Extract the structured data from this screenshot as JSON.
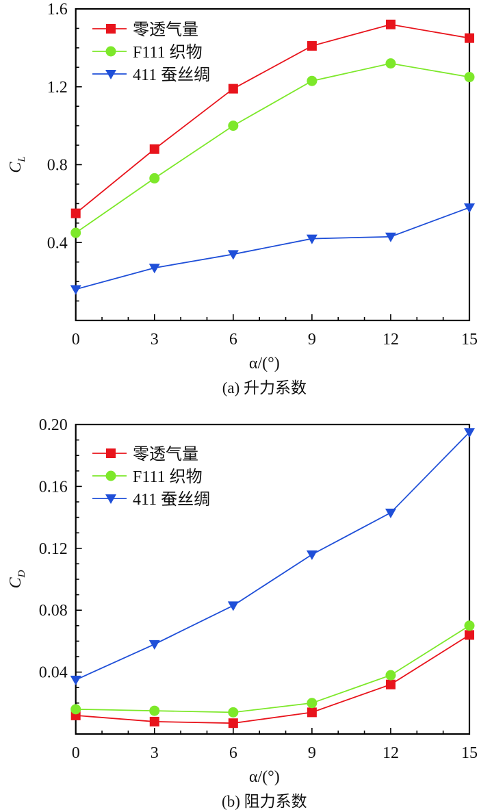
{
  "chart_data": [
    {
      "type": "line",
      "caption": "(a) 升力系数",
      "xlabel": "α/(°)",
      "ylabel_main": "C",
      "ylabel_sub": "L",
      "x": [
        0,
        3,
        6,
        9,
        12,
        15
      ],
      "xlim": [
        0,
        15
      ],
      "ylim": [
        0,
        1.6
      ],
      "xticks": [
        "0",
        "3",
        "6",
        "9",
        "12",
        "15"
      ],
      "yticks": [
        "0.4",
        "0.8",
        "1.2",
        "1.6"
      ],
      "ytick_values": [
        0.4,
        0.8,
        1.2,
        1.6
      ],
      "y_minor_step": 0.1,
      "x_minor_step": 1,
      "legend": "top-left",
      "series": [
        {
          "name": "零透气量",
          "marker": "square",
          "color": "#e8141c",
          "values": [
            0.55,
            0.88,
            1.19,
            1.41,
            1.52,
            1.45
          ]
        },
        {
          "name": "F111 织物",
          "marker": "circle",
          "color": "#7de82a",
          "values": [
            0.45,
            0.73,
            1.0,
            1.23,
            1.32,
            1.25
          ]
        },
        {
          "name": "411 蚕丝绸",
          "marker": "triangle-down",
          "color": "#1f4fd8",
          "values": [
            0.16,
            0.27,
            0.34,
            0.42,
            0.43,
            0.58
          ]
        }
      ]
    },
    {
      "type": "line",
      "caption": "(b) 阻力系数",
      "xlabel": "α/(°)",
      "ylabel_main": "C",
      "ylabel_sub": "D",
      "x": [
        0,
        3,
        6,
        9,
        12,
        15
      ],
      "xlim": [
        0,
        15
      ],
      "ylim": [
        0,
        0.2
      ],
      "xticks": [
        "0",
        "3",
        "6",
        "9",
        "12",
        "15"
      ],
      "yticks": [
        "0.04",
        "0.08",
        "0.12",
        "0.16",
        "0.20"
      ],
      "ytick_values": [
        0.04,
        0.08,
        0.12,
        0.16,
        0.2
      ],
      "y_minor_step": 0.01,
      "x_minor_step": 1,
      "legend": "top-left",
      "series": [
        {
          "name": "零透气量",
          "marker": "square",
          "color": "#e8141c",
          "values": [
            0.012,
            0.008,
            0.007,
            0.014,
            0.032,
            0.064
          ]
        },
        {
          "name": "F111 织物",
          "marker": "circle",
          "color": "#7de82a",
          "values": [
            0.016,
            0.015,
            0.014,
            0.02,
            0.038,
            0.07
          ]
        },
        {
          "name": "411 蚕丝绸",
          "marker": "triangle-down",
          "color": "#1f4fd8",
          "values": [
            0.035,
            0.058,
            0.083,
            0.116,
            0.143,
            0.195
          ]
        }
      ]
    }
  ]
}
